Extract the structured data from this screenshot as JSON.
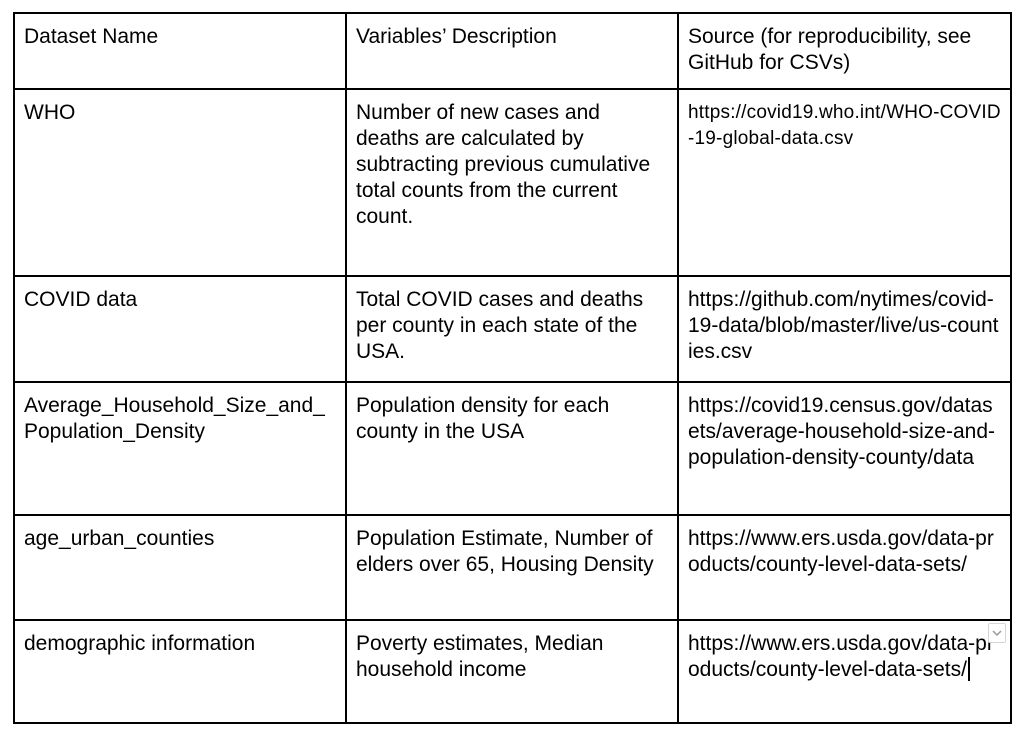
{
  "table": {
    "headers": [
      "Dataset Name",
      "Variables’ Description",
      "Source (for reproducibility, see GitHub for CSVs)"
    ],
    "rows": [
      {
        "name": "WHO",
        "description": "Number of new cases and deaths are calculated by subtracting previous cumulative total counts from the current count.",
        "source": "https://covid19.who.int/WHO-COVID-19-global-data.csv"
      },
      {
        "name": "COVID data",
        "description": "Total COVID cases and deaths per county in each state of the USA.",
        "source": "https://github.com/nytimes/covid-19-data/blob/master/live/us-counties.csv"
      },
      {
        "name": "Average_Household_Size_and_Population_Density",
        "description": "Population density for each county in the USA",
        "source": "https://covid19.census.gov/datasets/average-household-size-and-population-density-county/data"
      },
      {
        "name": "age_urban_counties",
        "description": "Population Estimate, Number of elders over 65, Housing Density",
        "source": "https://www.ers.usda.gov/data-products/county-level-data-sets/"
      },
      {
        "name": "demographic information",
        "description": "Poverty estimates, Median household income",
        "source": "https://www.ers.usda.gov/data-products/county-level-data-sets/"
      }
    ]
  },
  "icons": {
    "dropdown_handle": "chevron-down-icon"
  },
  "colors": {
    "border": "#000000",
    "text": "#000000",
    "background": "#ffffff"
  }
}
